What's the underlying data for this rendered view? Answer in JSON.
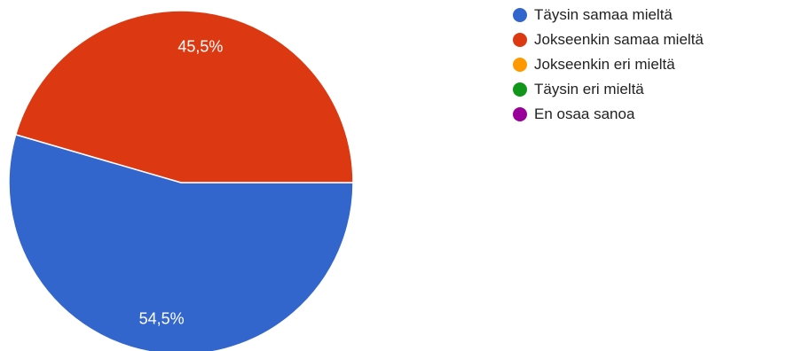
{
  "chart_data": {
    "type": "pie",
    "categories": [
      "Täysin samaa mieltä",
      "Jokseenkin samaa mieltä",
      "Jokseenkin eri mieltä",
      "Täysin eri mieltä",
      "En osaa sanoa"
    ],
    "values": [
      54.5,
      45.5,
      0,
      0,
      0
    ],
    "slice_labels": [
      "54,5%",
      "45,5%",
      "",
      "",
      ""
    ],
    "colors": [
      "#3366cc",
      "#dc3912",
      "#ff9900",
      "#109618",
      "#990099"
    ],
    "legend_position": "right"
  }
}
